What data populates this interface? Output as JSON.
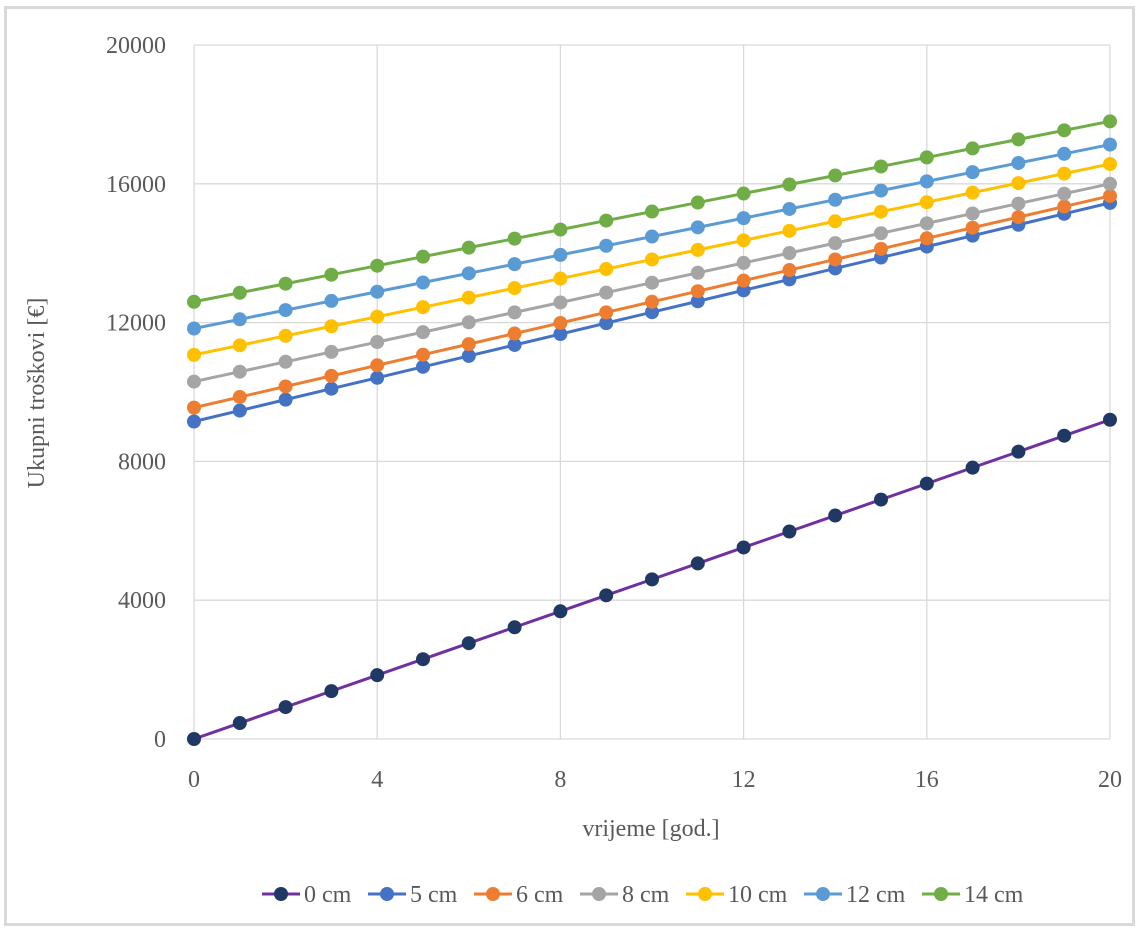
{
  "chart_data": {
    "type": "line",
    "xlabel": "vrijeme [god.]",
    "ylabel": "Ukupni troškovi [€]",
    "xlim": [
      0,
      20
    ],
    "ylim": [
      0,
      20000
    ],
    "xticks": [
      "0",
      "4",
      "8",
      "12",
      "16",
      "20"
    ],
    "yticks": [
      "0",
      "4000",
      "8000",
      "12000",
      "16000",
      "20000"
    ],
    "grid": true,
    "legend_position": "bottom",
    "x": [
      0,
      1,
      2,
      3,
      4,
      5,
      6,
      7,
      8,
      9,
      10,
      11,
      12,
      13,
      14,
      15,
      16,
      17,
      18,
      19,
      20
    ],
    "series": [
      {
        "name": "0 cm",
        "line_color": "#7030a0",
        "marker_color": "#1f3864",
        "values": [
          0,
          460,
          920,
          1380,
          1840,
          2300,
          2760,
          3220,
          3680,
          4140,
          4600,
          5060,
          5520,
          5980,
          6440,
          6900,
          7360,
          7820,
          8280,
          8740,
          9200
        ]
      },
      {
        "name": "5 cm",
        "line_color": "#4472c4",
        "marker_color": "#4472c4",
        "values": [
          9150,
          9465,
          9780,
          10095,
          10410,
          10725,
          11040,
          11355,
          11670,
          11985,
          12300,
          12615,
          12930,
          13245,
          13560,
          13875,
          14190,
          14505,
          14820,
          15135,
          15450
        ]
      },
      {
        "name": "6 cm",
        "line_color": "#ed7d31",
        "marker_color": "#ed7d31",
        "values": [
          9550,
          9855,
          10160,
          10465,
          10770,
          11075,
          11380,
          11685,
          11990,
          12295,
          12600,
          12905,
          13210,
          13515,
          13820,
          14125,
          14430,
          14735,
          15040,
          15345,
          15650
        ]
      },
      {
        "name": "8 cm",
        "line_color": "#a5a5a5",
        "marker_color": "#a5a5a5",
        "values": [
          10300,
          10585,
          10870,
          11155,
          11440,
          11725,
          12010,
          12295,
          12580,
          12865,
          13150,
          13435,
          13720,
          14005,
          14290,
          14575,
          14860,
          15145,
          15430,
          15715,
          16000
        ]
      },
      {
        "name": "10 cm",
        "line_color": "#ffc000",
        "marker_color": "#ffc000",
        "values": [
          11070,
          11345,
          11620,
          11895,
          12170,
          12445,
          12720,
          12995,
          13270,
          13545,
          13820,
          14095,
          14370,
          14645,
          14920,
          15195,
          15470,
          15745,
          16020,
          16295,
          16570
        ]
      },
      {
        "name": "12 cm",
        "line_color": "#5b9bd5",
        "marker_color": "#5b9bd5",
        "values": [
          11830,
          12095,
          12360,
          12625,
          12890,
          13155,
          13420,
          13685,
          13950,
          14215,
          14480,
          14745,
          15010,
          15275,
          15540,
          15805,
          16070,
          16335,
          16600,
          16865,
          17130
        ]
      },
      {
        "name": "14 cm",
        "line_color": "#70ad47",
        "marker_color": "#70ad47",
        "values": [
          12600,
          12860,
          13120,
          13380,
          13640,
          13900,
          14160,
          14420,
          14680,
          14940,
          15200,
          15460,
          15720,
          15980,
          16240,
          16500,
          16760,
          17020,
          17280,
          17540,
          17800
        ]
      }
    ]
  }
}
